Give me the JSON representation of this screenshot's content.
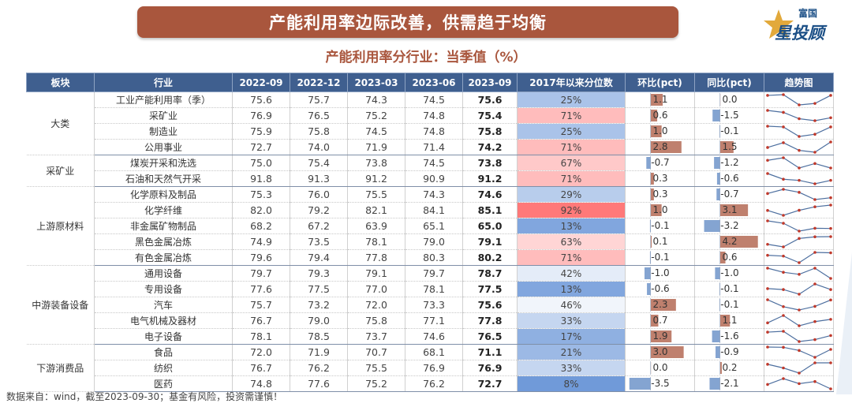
{
  "header": {
    "title": "产能利用率边际改善，供需趋于均衡",
    "subtitle": "产能利用率分行业：当季值（%）"
  },
  "logo": {
    "small": "富国",
    "big": "星投顾"
  },
  "columns": [
    "板块",
    "行业",
    "2022-09",
    "2022-12",
    "2023-03",
    "2023-06",
    "2023-09",
    "2017年以来分位数",
    "环比(pct)",
    "同比(pct)",
    "趋势图"
  ],
  "groups": [
    {
      "sector": "大类",
      "rows": [
        {
          "industry": "工业产能利用率（季）",
          "values": [
            75.6,
            75.7,
            74.3,
            74.5,
            75.6
          ],
          "pctile": "25%",
          "pctile_num": 25,
          "qoq": "1.1",
          "qoq_num": 1.1,
          "yoy": "0.0",
          "yoy_num": 0.0
        },
        {
          "industry": "采矿业",
          "values": [
            76.9,
            76.5,
            75.2,
            74.8,
            75.4
          ],
          "pctile": "71%",
          "pctile_num": 71,
          "qoq": "0.6",
          "qoq_num": 0.6,
          "yoy": "-1.5",
          "yoy_num": -1.5
        },
        {
          "industry": "制造业",
          "values": [
            75.9,
            75.8,
            74.5,
            74.8,
            75.8
          ],
          "pctile": "25%",
          "pctile_num": 25,
          "qoq": "1.0",
          "qoq_num": 1.0,
          "yoy": "-0.1",
          "yoy_num": -0.1
        },
        {
          "industry": "公用事业",
          "values": [
            72.7,
            74.0,
            71.9,
            71.4,
            74.2
          ],
          "pctile": "71%",
          "pctile_num": 71,
          "qoq": "2.8",
          "qoq_num": 2.8,
          "yoy": "1.5",
          "yoy_num": 1.5
        }
      ]
    },
    {
      "sector": "采矿业",
      "rows": [
        {
          "industry": "煤炭开采和洗选",
          "values": [
            75.0,
            75.4,
            73.8,
            74.5,
            73.8
          ],
          "pctile": "67%",
          "pctile_num": 67,
          "qoq": "-0.7",
          "qoq_num": -0.7,
          "yoy": "-1.2",
          "yoy_num": -1.2
        },
        {
          "industry": "石油和天然气开采",
          "values": [
            91.8,
            91.3,
            91.2,
            90.9,
            91.2
          ],
          "pctile": "71%",
          "pctile_num": 71,
          "qoq": "0.3",
          "qoq_num": 0.3,
          "yoy": "-0.6",
          "yoy_num": -0.6
        }
      ]
    },
    {
      "sector": "上游原材料",
      "rows": [
        {
          "industry": "化学原料及制品",
          "values": [
            75.3,
            76.0,
            75.5,
            74.3,
            74.6
          ],
          "pctile": "29%",
          "pctile_num": 29,
          "qoq": "0.3",
          "qoq_num": 0.3,
          "yoy": "-0.7",
          "yoy_num": -0.7
        },
        {
          "industry": "化学纤维",
          "values": [
            82.0,
            79.2,
            82.1,
            84.1,
            85.1
          ],
          "pctile": "92%",
          "pctile_num": 92,
          "qoq": "1.0",
          "qoq_num": 1.0,
          "yoy": "3.1",
          "yoy_num": 3.1
        },
        {
          "industry": "非金属矿物制品",
          "values": [
            68.2,
            67.2,
            63.9,
            65.1,
            65.0
          ],
          "pctile": "13%",
          "pctile_num": 13,
          "qoq": "-0.1",
          "qoq_num": -0.1,
          "yoy": "-3.2",
          "yoy_num": -3.2
        },
        {
          "industry": "黑色金属冶炼",
          "values": [
            74.9,
            73.5,
            78.1,
            79.0,
            79.1
          ],
          "pctile": "63%",
          "pctile_num": 63,
          "qoq": "0.1",
          "qoq_num": 0.1,
          "yoy": "4.2",
          "yoy_num": 4.2
        },
        {
          "industry": "有色金属冶炼",
          "values": [
            79.6,
            79.4,
            77.8,
            80.3,
            80.2
          ],
          "pctile": "71%",
          "pctile_num": 71,
          "qoq": "-0.1",
          "qoq_num": -0.1,
          "yoy": "0.6",
          "yoy_num": 0.6
        }
      ]
    },
    {
      "sector": "中游装备设备",
      "rows": [
        {
          "industry": "通用设备",
          "values": [
            79.7,
            79.3,
            79.1,
            79.7,
            78.7
          ],
          "pctile": "42%",
          "pctile_num": 42,
          "qoq": "-1.0",
          "qoq_num": -1.0,
          "yoy": "-1.0",
          "yoy_num": -1.0
        },
        {
          "industry": "专用设备",
          "values": [
            77.6,
            77.5,
            77.0,
            78.1,
            77.5
          ],
          "pctile": "13%",
          "pctile_num": 13,
          "qoq": "-0.6",
          "qoq_num": -0.6,
          "yoy": "-0.1",
          "yoy_num": -0.1
        },
        {
          "industry": "汽车",
          "values": [
            75.7,
            73.2,
            72.0,
            73.3,
            75.6
          ],
          "pctile": "46%",
          "pctile_num": 46,
          "qoq": "2.3",
          "qoq_num": 2.3,
          "yoy": "-0.1",
          "yoy_num": -0.1
        },
        {
          "industry": "电气机械及器材",
          "values": [
            76.7,
            79.0,
            75.8,
            77.1,
            77.8
          ],
          "pctile": "33%",
          "pctile_num": 33,
          "qoq": "0.7",
          "qoq_num": 0.7,
          "yoy": "1.1",
          "yoy_num": 1.1
        },
        {
          "industry": "电子设备",
          "values": [
            78.1,
            78.5,
            73.7,
            74.6,
            76.5
          ],
          "pctile": "17%",
          "pctile_num": 17,
          "qoq": "1.9",
          "qoq_num": 1.9,
          "yoy": "-1.6",
          "yoy_num": -1.6
        }
      ]
    },
    {
      "sector": "下游消费品",
      "rows": [
        {
          "industry": "食品",
          "values": [
            72.0,
            71.9,
            70.7,
            68.1,
            71.1
          ],
          "pctile": "21%",
          "pctile_num": 21,
          "qoq": "3.0",
          "qoq_num": 3.0,
          "yoy": "-0.9",
          "yoy_num": -0.9
        },
        {
          "industry": "纺织",
          "values": [
            76.7,
            76.2,
            75.5,
            76.9,
            76.9
          ],
          "pctile": "33%",
          "pctile_num": 33,
          "qoq": "0.0",
          "qoq_num": 0.0,
          "yoy": "0.2",
          "yoy_num": 0.2
        },
        {
          "industry": "医药",
          "values": [
            74.8,
            77.6,
            75.2,
            76.2,
            72.7
          ],
          "pctile": "8%",
          "pctile_num": 8,
          "qoq": "-3.5",
          "qoq_num": -3.5,
          "yoy": "-2.1",
          "yoy_num": -2.1
        }
      ]
    }
  ],
  "footer": "数据来自：wind，截至2023-09-30；基金有风险，投资需谨慎！",
  "colors": {
    "title_bg": "#a9563d",
    "header_bg": "#3f5f8f",
    "pos_bar": "#a9563d",
    "neg_bar": "#5b85c2",
    "trend_line": "#4d6f9f",
    "trend_dot": "#c0392b"
  }
}
